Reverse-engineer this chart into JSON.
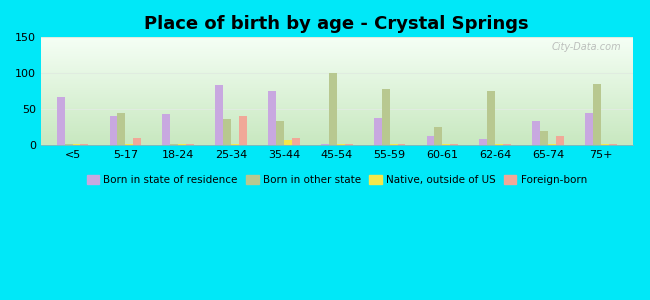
{
  "title": "Place of birth by age - Crystal Springs",
  "categories": [
    "<5",
    "5-17",
    "18-24",
    "25-34",
    "35-44",
    "45-54",
    "55-59",
    "60-61",
    "62-64",
    "65-74",
    "75+"
  ],
  "series": {
    "Born in state of residence": [
      67,
      40,
      43,
      84,
      75,
      2,
      37,
      13,
      8,
      33,
      45
    ],
    "Born in other state": [
      2,
      45,
      2,
      36,
      33,
      100,
      78,
      25,
      75,
      20,
      85
    ],
    "Native, outside of US": [
      2,
      2,
      2,
      2,
      7,
      2,
      2,
      2,
      2,
      2,
      2
    ],
    "Foreign-born": [
      2,
      10,
      2,
      40,
      9,
      2,
      2,
      2,
      2,
      13,
      2
    ]
  },
  "colors": {
    "Born in state of residence": "#c8a8e0",
    "Born in other state": "#b8c890",
    "Native, outside of US": "#f5e84a",
    "Foreign-born": "#f0a898"
  },
  "ylim": [
    0,
    150
  ],
  "yticks": [
    0,
    50,
    100,
    150
  ],
  "bar_width": 0.15,
  "bg_top": "#f5fff5",
  "bg_bottom": "#c8e8c0",
  "figure_background": "#00e8f8",
  "grid_color": "#e0ece0",
  "legend_fontsize": 7.5,
  "title_fontsize": 13
}
